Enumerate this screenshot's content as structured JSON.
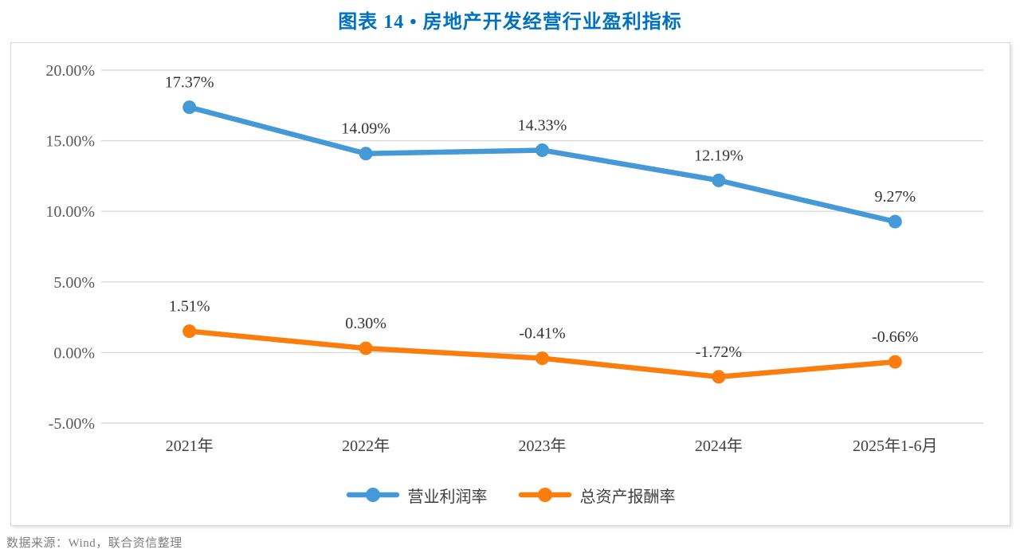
{
  "title": "图表 14 • 房地产开发经营行业盈利指标",
  "title_color": "#0070c0",
  "source_note": "数据来源：Wind，联合资信整理",
  "colors": {
    "grid": "#d9d9d9",
    "frame_border": "#d9d9d9",
    "y_tick_label": "#595959",
    "x_tick_label": "#404040",
    "data_label": "#333333",
    "series_blue": "#4599d6",
    "series_orange": "#fa7d0e"
  },
  "chart_data": {
    "type": "line",
    "title": "图表 14 • 房地产开发经营行业盈利指标",
    "categories": [
      "2021年",
      "2022年",
      "2023年",
      "2024年",
      "2025年1-6月"
    ],
    "series": [
      {
        "name": "营业利润率",
        "color": "#4599d6",
        "values": [
          17.37,
          14.09,
          14.33,
          12.19,
          9.27
        ],
        "labels": [
          "17.37%",
          "14.09%",
          "14.33%",
          "12.19%",
          "9.27%"
        ]
      },
      {
        "name": "总资产报酬率",
        "color": "#fa7d0e",
        "values": [
          1.51,
          0.3,
          -0.41,
          -1.72,
          -0.66
        ],
        "labels": [
          "1.51%",
          "0.30%",
          "-0.41%",
          "-1.72%",
          "-0.66%"
        ]
      }
    ],
    "xlabel": "",
    "ylabel": "",
    "y_axis": {
      "min": -5,
      "max": 20,
      "step": 5,
      "tick_labels": [
        "20.00%",
        "15.00%",
        "10.00%",
        "5.00%",
        "0.00%",
        "-5.00%"
      ]
    },
    "grid": true,
    "legend_position": "bottom"
  }
}
